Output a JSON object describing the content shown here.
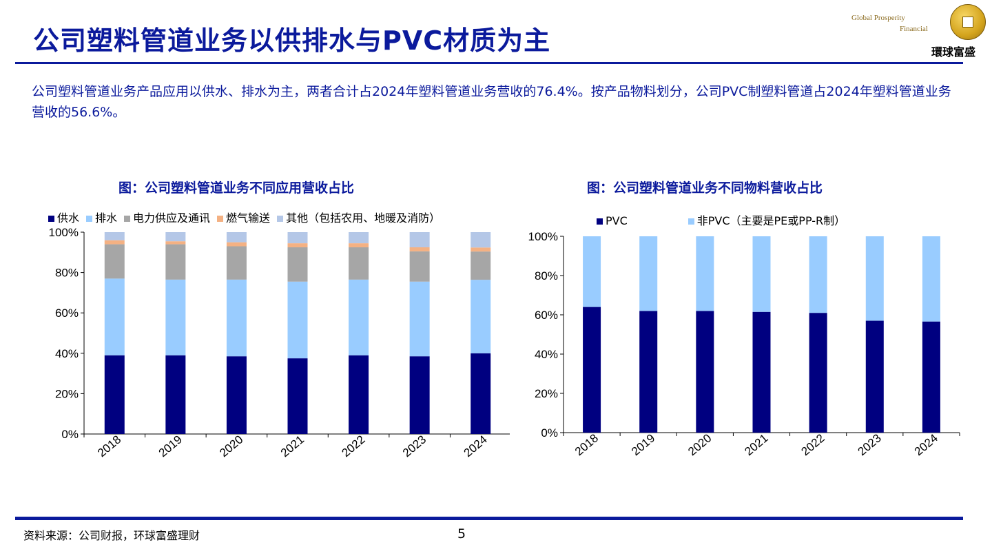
{
  "slide": {
    "title": "公司塑料管道业务以供排水与PVC材质为主",
    "intro": "公司塑料管道业务产品应用以供水、排水为主，两者合计占2024年塑料管道业务营收的76.4%。按产品物料划分，公司PVC制塑料管道占2024年塑料管道业务营收的56.6%。",
    "source": "资料来源：公司财报，环球富盛理财",
    "page_number": "5"
  },
  "logo": {
    "line1": "Global",
    "line2": "Prosperity",
    "line3": "Financial",
    "cn_name": "環球富盛"
  },
  "chart_data": [
    {
      "type": "bar",
      "stacked": true,
      "title": "图：公司塑料管道业务不同应用营收占比",
      "categories": [
        "2018",
        "2019",
        "2020",
        "2021",
        "2022",
        "2023",
        "2024"
      ],
      "ylim": [
        0,
        100
      ],
      "yticks": [
        "0%",
        "20%",
        "40%",
        "60%",
        "80%",
        "100%"
      ],
      "legend_position": "top",
      "series": [
        {
          "name": "供水",
          "color": "#000080",
          "values": [
            39,
            39,
            38.5,
            37.5,
            39,
            38.5,
            40
          ]
        },
        {
          "name": "排水",
          "color": "#99ccff",
          "values": [
            38,
            37.5,
            38,
            38,
            37.5,
            37,
            36.4
          ]
        },
        {
          "name": "电力供应及通讯",
          "color": "#a6a6a6",
          "values": [
            17,
            17.5,
            16.5,
            17,
            16,
            15,
            14
          ]
        },
        {
          "name": "燃气输送",
          "color": "#f4b183",
          "values": [
            2,
            1.5,
            2,
            2,
            2,
            2,
            2
          ]
        },
        {
          "name": "其他（包括农用、地暖及消防）",
          "color": "#b4c7e7",
          "values": [
            4,
            4.5,
            5,
            5.5,
            5.5,
            7.5,
            7.6
          ]
        }
      ]
    },
    {
      "type": "bar",
      "stacked": true,
      "title": "图：公司塑料管道业务不同物料营收占比",
      "categories": [
        "2018",
        "2019",
        "2020",
        "2021",
        "2022",
        "2023",
        "2024"
      ],
      "ylim": [
        0,
        100
      ],
      "yticks": [
        "0%",
        "20%",
        "40%",
        "60%",
        "80%",
        "100%"
      ],
      "legend_position": "top",
      "series": [
        {
          "name": "PVC",
          "color": "#000080",
          "values": [
            64,
            62,
            62,
            61.5,
            61,
            57,
            56.6
          ]
        },
        {
          "name": "非PVC（主要是PE或PP-R制）",
          "color": "#99ccff",
          "values": [
            36,
            38,
            38,
            38.5,
            39,
            43,
            43.4
          ]
        }
      ]
    }
  ]
}
